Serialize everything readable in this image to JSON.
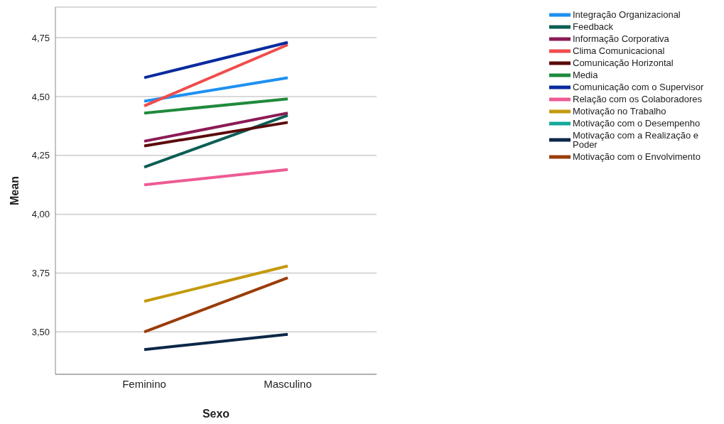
{
  "chart_data": {
    "type": "line",
    "xlabel": "Sexo",
    "ylabel": "Mean",
    "categories": [
      "Feminino",
      "Masculino"
    ],
    "series": [
      {
        "name": "Integração Organizacional",
        "color": "#1e90f0",
        "values": [
          4.48,
          4.58
        ]
      },
      {
        "name": "Feedback",
        "color": "#0b5e54",
        "values": [
          4.2,
          4.42
        ]
      },
      {
        "name": "Informação Corporativa",
        "color": "#8b1a55",
        "values": [
          4.31,
          4.43
        ]
      },
      {
        "name": "Clima Comunicacional",
        "color": "#f04c4c",
        "values": [
          4.46,
          4.72
        ]
      },
      {
        "name": "Comunicação Horizontal",
        "color": "#5a0a0a",
        "values": [
          4.29,
          4.39
        ]
      },
      {
        "name": "Media",
        "color": "#1f8a3c",
        "values": [
          4.43,
          4.49
        ]
      },
      {
        "name": "Comunicação com o Supervisor",
        "color": "#0a2b9e",
        "values": [
          4.58,
          4.73
        ]
      },
      {
        "name": "Relação com os Colaboradores",
        "color": "#ee5a94",
        "values": [
          4.125,
          4.19
        ]
      },
      {
        "name": "Motivação no Trabalho",
        "color": "#c49a0c",
        "values": [
          3.63,
          3.78
        ]
      },
      {
        "name": "Motivação com o Desempenho",
        "color": "#12a89c",
        "values": [
          null,
          null
        ]
      },
      {
        "name": "Motivação com a Realização e Poder",
        "color": "#0b2748",
        "values": [
          3.425,
          3.49
        ]
      },
      {
        "name": "Motivação com o Envolvimento",
        "color": "#9a3c08",
        "values": [
          3.5,
          3.73
        ]
      }
    ],
    "ylim": [
      3.32,
      4.88
    ],
    "yticks": [
      {
        "value": 3.5,
        "label": "3,50"
      },
      {
        "value": 3.75,
        "label": "3,75"
      },
      {
        "value": 4.0,
        "label": "4,00"
      },
      {
        "value": 4.25,
        "label": "4,25"
      },
      {
        "value": 4.5,
        "label": "4,50"
      },
      {
        "value": 4.75,
        "label": "4,75"
      }
    ],
    "grid": "y",
    "legend": "top right",
    "marker": "none",
    "line_style": "solid"
  }
}
